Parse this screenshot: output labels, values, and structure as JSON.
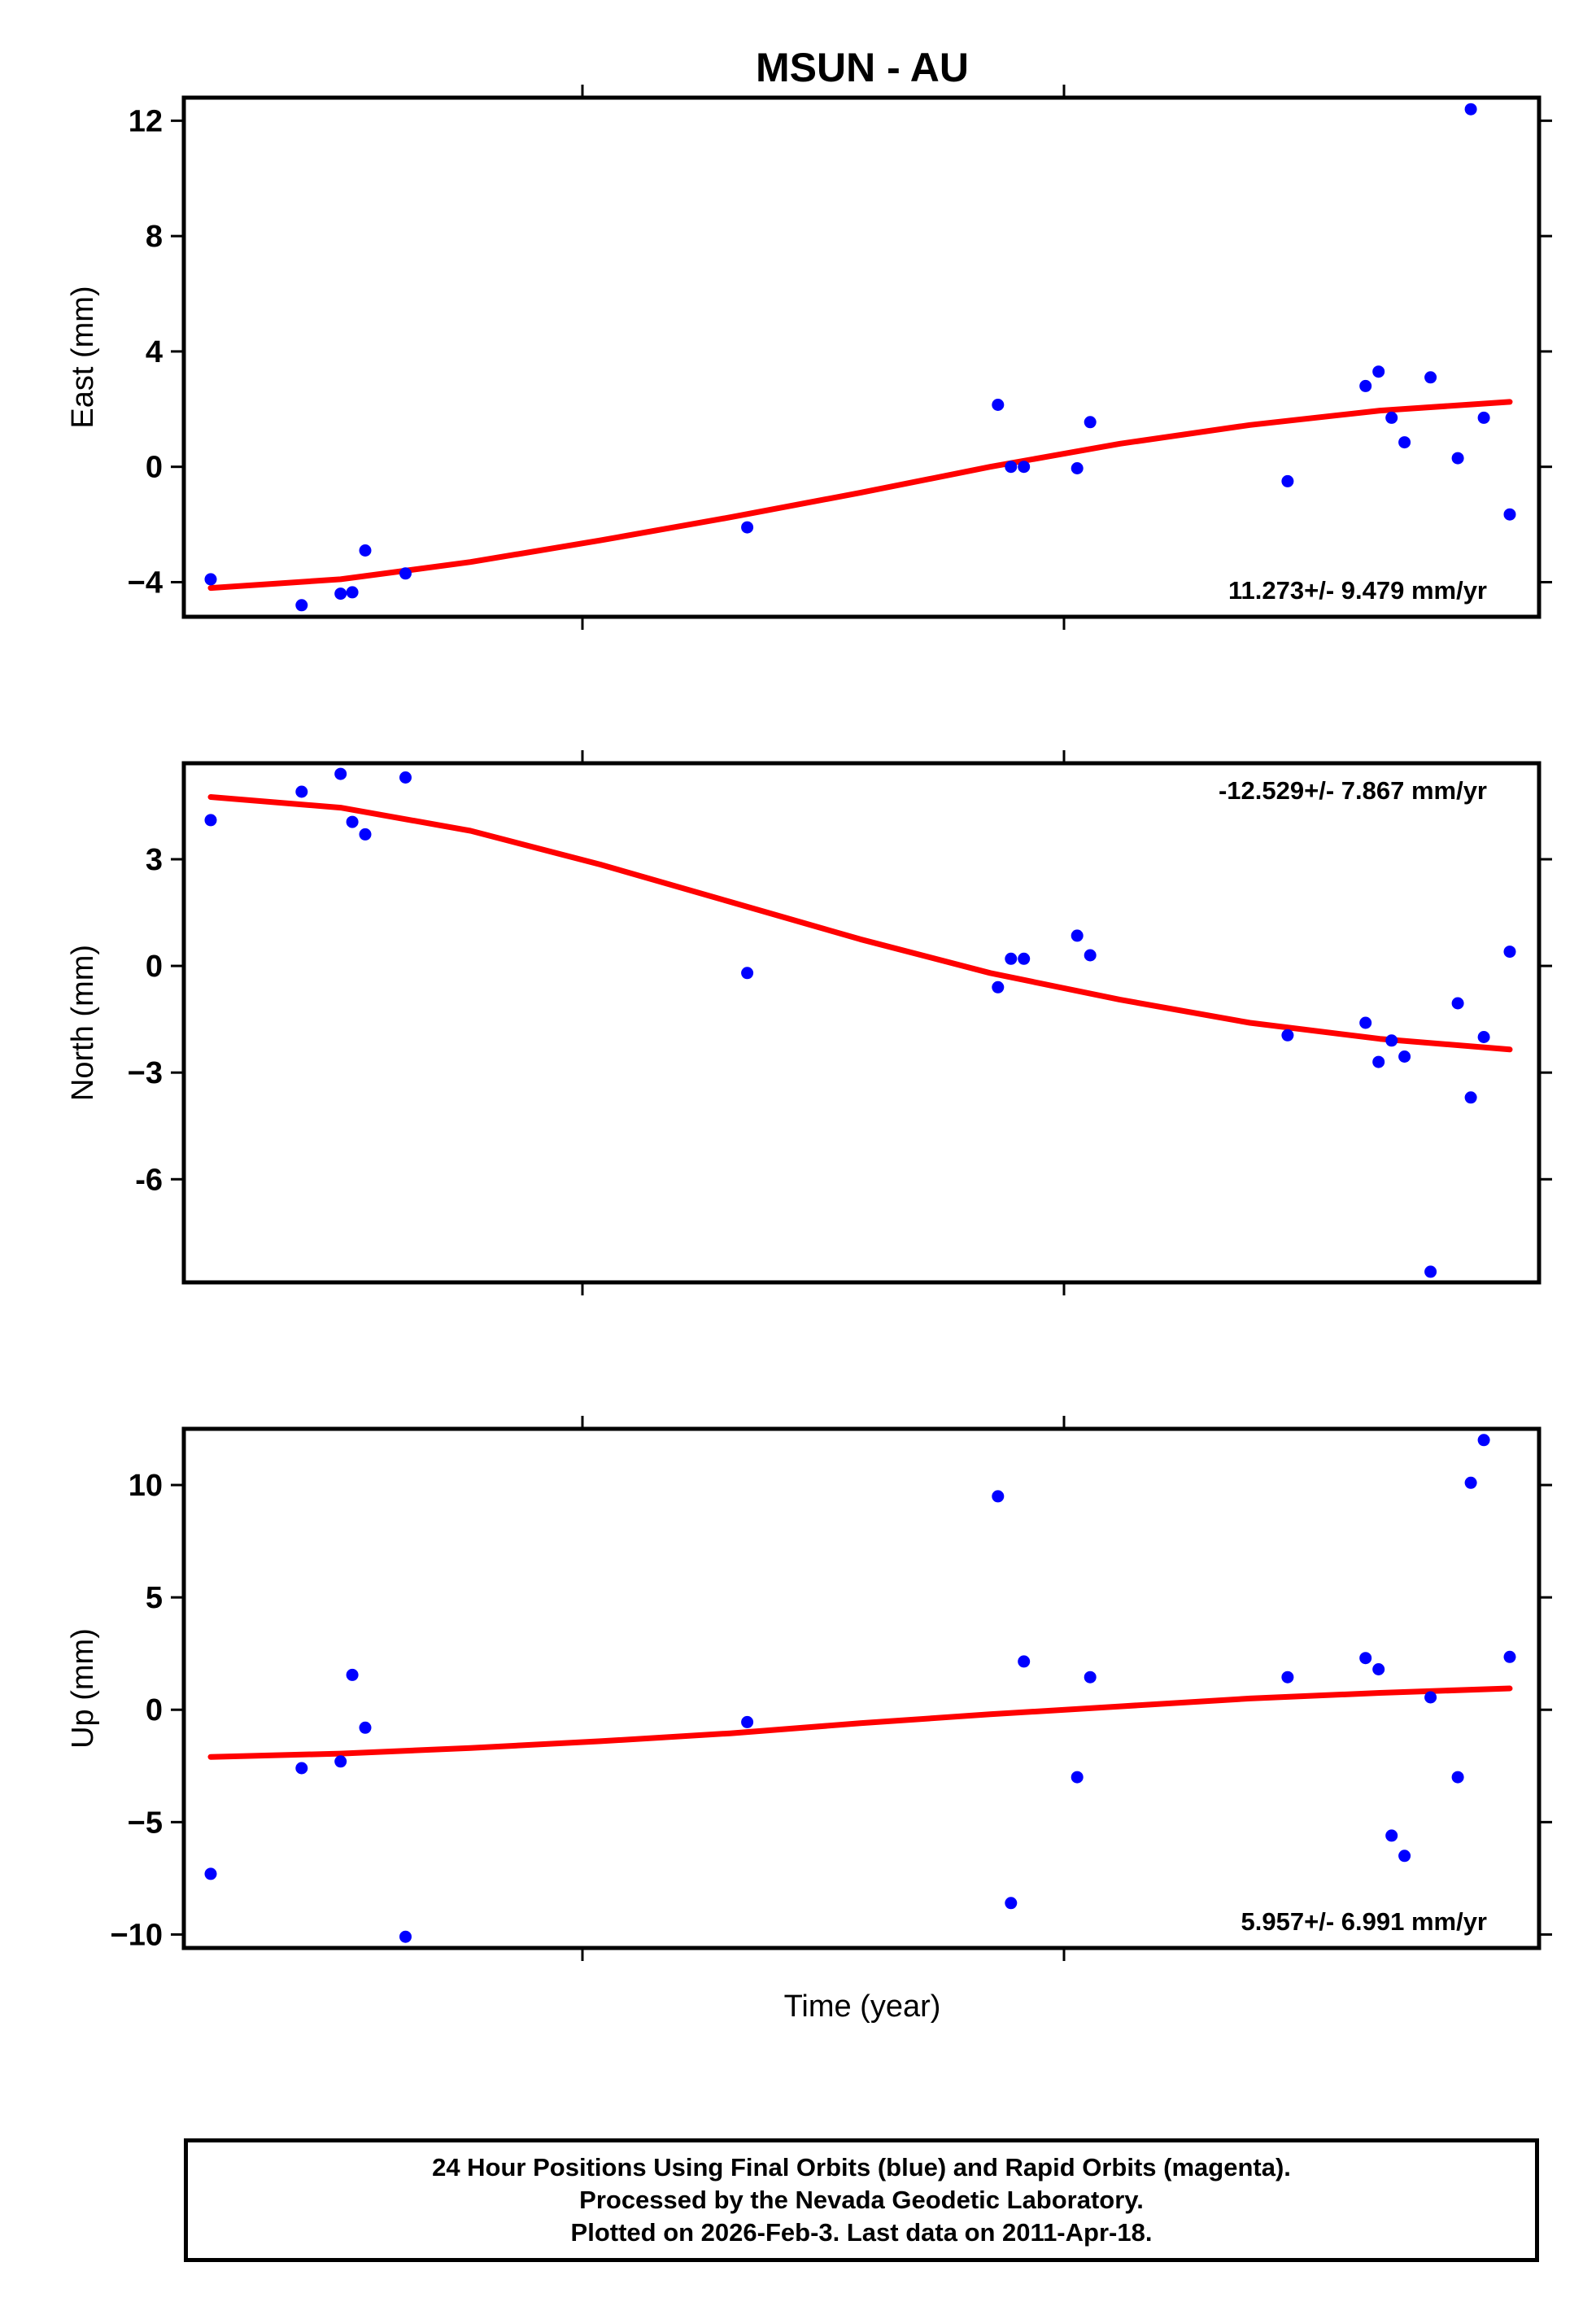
{
  "title": "MSUN - AU",
  "xlabel": "Time (year)",
  "footer": {
    "line1": "24 Hour Positions Using Final Orbits (blue) and Rapid Orbits (magenta).",
    "line2": "Processed by the Nevada Geodetic Laboratory.",
    "line3": "Plotted on 2026-Feb-3. Last data on 2011-Apr-18."
  },
  "colors": {
    "points": "#0000ff",
    "fit": "#ff0000",
    "frame": "#000000"
  },
  "chart_data": [
    {
      "type": "scatter",
      "name": "east",
      "ylabel": "East (mm)",
      "rate_label": "11.273+/- 9.479 mm/yr",
      "rate_position": "bottom-right",
      "ylim": [
        -5.2,
        12.8
      ],
      "yticks": [
        12,
        8,
        4,
        0,
        -4
      ],
      "ytick_labels": [
        "12",
        "8",
        "4",
        "0",
        "−4"
      ],
      "x_data_domain": [
        0,
        1
      ],
      "points": [
        [
          0.0,
          -3.9
        ],
        [
          0.07,
          -4.8
        ],
        [
          0.1,
          -4.4
        ],
        [
          0.109,
          -4.35
        ],
        [
          0.119,
          -2.9
        ],
        [
          0.15,
          -3.7
        ],
        [
          0.413,
          -2.1
        ],
        [
          0.606,
          2.15
        ],
        [
          0.616,
          0.0
        ],
        [
          0.626,
          0.0
        ],
        [
          0.667,
          -0.05
        ],
        [
          0.677,
          1.55
        ],
        [
          0.829,
          -0.5
        ],
        [
          0.889,
          2.8
        ],
        [
          0.899,
          3.3
        ],
        [
          0.909,
          1.7
        ],
        [
          0.919,
          0.85
        ],
        [
          0.939,
          3.1
        ],
        [
          0.96,
          0.3
        ],
        [
          0.97,
          12.4
        ],
        [
          0.98,
          1.7
        ],
        [
          1.0,
          -1.65
        ]
      ],
      "fit": [
        [
          0.0,
          -4.2
        ],
        [
          0.1,
          -3.9
        ],
        [
          0.2,
          -3.3
        ],
        [
          0.3,
          -2.55
        ],
        [
          0.4,
          -1.75
        ],
        [
          0.5,
          -0.9
        ],
        [
          0.6,
          0.0
        ],
        [
          0.7,
          0.8
        ],
        [
          0.8,
          1.45
        ],
        [
          0.9,
          1.95
        ],
        [
          1.0,
          2.25
        ]
      ]
    },
    {
      "type": "scatter",
      "name": "north",
      "ylabel": "North (mm)",
      "rate_label": "-12.529+/- 7.867 mm/yr",
      "rate_position": "top-right",
      "ylim": [
        -8.9,
        5.7
      ],
      "yticks": [
        3,
        0,
        -3,
        -6
      ],
      "ytick_labels": [
        "3",
        "0",
        "−3",
        "-6"
      ],
      "x_data_domain": [
        0,
        1
      ],
      "points": [
        [
          0.0,
          4.1
        ],
        [
          0.07,
          4.9
        ],
        [
          0.1,
          5.4
        ],
        [
          0.109,
          4.05
        ],
        [
          0.119,
          3.7
        ],
        [
          0.15,
          5.3
        ],
        [
          0.413,
          -0.2
        ],
        [
          0.606,
          -0.6
        ],
        [
          0.616,
          0.2
        ],
        [
          0.626,
          0.2
        ],
        [
          0.667,
          0.85
        ],
        [
          0.677,
          0.3
        ],
        [
          0.829,
          -1.95
        ],
        [
          0.889,
          -1.6
        ],
        [
          0.899,
          -2.7
        ],
        [
          0.909,
          -2.1
        ],
        [
          0.919,
          -2.55
        ],
        [
          0.939,
          -8.6
        ],
        [
          0.96,
          -1.05
        ],
        [
          0.97,
          -3.7
        ],
        [
          0.98,
          -2.0
        ],
        [
          1.0,
          0.4
        ]
      ],
      "fit": [
        [
          0.0,
          4.75
        ],
        [
          0.1,
          4.45
        ],
        [
          0.2,
          3.8
        ],
        [
          0.3,
          2.85
        ],
        [
          0.4,
          1.8
        ],
        [
          0.5,
          0.75
        ],
        [
          0.6,
          -0.2
        ],
        [
          0.7,
          -0.95
        ],
        [
          0.8,
          -1.6
        ],
        [
          0.9,
          -2.05
        ],
        [
          1.0,
          -2.35
        ]
      ]
    },
    {
      "type": "scatter",
      "name": "up",
      "ylabel": "Up (mm)",
      "rate_label": "5.957+/- 6.991 mm/yr",
      "rate_position": "bottom-right",
      "ylim": [
        -10.6,
        12.5
      ],
      "yticks": [
        10,
        5,
        0,
        -5,
        -10
      ],
      "ytick_labels": [
        "10",
        "5",
        "0",
        "−5",
        "−10"
      ],
      "x_data_domain": [
        0,
        1
      ],
      "points": [
        [
          0.0,
          -7.3
        ],
        [
          0.07,
          -2.6
        ],
        [
          0.1,
          -2.3
        ],
        [
          0.109,
          1.55
        ],
        [
          0.119,
          -0.8
        ],
        [
          0.15,
          -10.1
        ],
        [
          0.413,
          -0.55
        ],
        [
          0.606,
          9.5
        ],
        [
          0.616,
          -8.6
        ],
        [
          0.626,
          2.15
        ],
        [
          0.667,
          -3.0
        ],
        [
          0.677,
          1.45
        ],
        [
          0.829,
          1.45
        ],
        [
          0.889,
          2.3
        ],
        [
          0.899,
          1.8
        ],
        [
          0.909,
          -5.6
        ],
        [
          0.919,
          -6.5
        ],
        [
          0.939,
          0.55
        ],
        [
          0.96,
          -3.0
        ],
        [
          0.97,
          10.1
        ],
        [
          0.98,
          12.0
        ],
        [
          1.0,
          2.35
        ]
      ],
      "fit": [
        [
          0.0,
          -2.1
        ],
        [
          0.1,
          -1.95
        ],
        [
          0.2,
          -1.7
        ],
        [
          0.3,
          -1.4
        ],
        [
          0.4,
          -1.05
        ],
        [
          0.5,
          -0.6
        ],
        [
          0.6,
          -0.2
        ],
        [
          0.7,
          0.15
        ],
        [
          0.8,
          0.5
        ],
        [
          0.9,
          0.75
        ],
        [
          1.0,
          0.95
        ]
      ]
    }
  ]
}
